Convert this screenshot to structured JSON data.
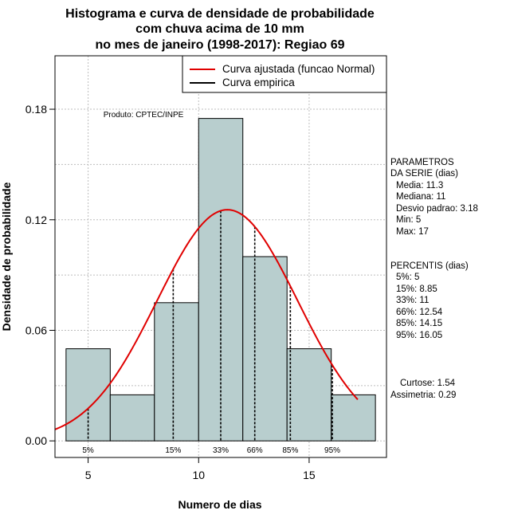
{
  "chart_data": {
    "type": "bar",
    "title_lines": [
      "Histograma e curva de densidade de probabilidade",
      "com chuva acima de 10 mm",
      "no mes de janeiro (1998-2017): Regiao 69"
    ],
    "xlabel": "Numero de dias",
    "ylabel": "Densidade de probabilidade",
    "xlim": [
      3.5,
      18.5
    ],
    "ylim": [
      -0.009,
      0.209
    ],
    "x_ticks": [
      5,
      10,
      15
    ],
    "y_ticks": [
      0.0,
      0.06,
      0.12,
      0.18
    ],
    "y_tick_labels": [
      "0.00",
      "0.06",
      "0.12",
      "0.18"
    ],
    "grid": true,
    "bins": [
      {
        "from": 4,
        "to": 6,
        "density": 0.05
      },
      {
        "from": 6,
        "to": 8,
        "density": 0.025
      },
      {
        "from": 8,
        "to": 10,
        "density": 0.075
      },
      {
        "from": 10,
        "to": 12,
        "density": 0.175
      },
      {
        "from": 12,
        "to": 14,
        "density": 0.1
      },
      {
        "from": 14,
        "to": 16,
        "density": 0.05
      },
      {
        "from": 16,
        "to": 18,
        "density": 0.025
      }
    ],
    "fitted_curve": {
      "label": "Curva ajustada (funcao Normal)",
      "color": "#e00000",
      "mean": 11.3,
      "sd": 3.18,
      "from": 3.5,
      "to": 17.2
    },
    "empirical_curve": {
      "label": "Curva empirica",
      "color": "#000000"
    },
    "percentile_markers": [
      {
        "label": "5%",
        "x": 5
      },
      {
        "label": "15%",
        "x": 8.85
      },
      {
        "label": "33%",
        "x": 11
      },
      {
        "label": "66%",
        "x": 12.54
      },
      {
        "label": "85%",
        "x": 14.15
      },
      {
        "label": "95%",
        "x": 16.05
      }
    ],
    "bar_color": "#b8cece",
    "producer": "Produto: CPTEC/INPE",
    "legend_position": "top-right"
  },
  "side_panel": {
    "params_title": [
      "PARAMETROS",
      "DA SERIE (dias)"
    ],
    "params": [
      "Media: 11.3",
      "Mediana: 11",
      "Desvio padrao: 3.18",
      "Min: 5",
      "Max: 17"
    ],
    "percentis_title": "PERCENTIS (dias)",
    "percentis": [
      "5%: 5",
      "15%: 8.85",
      "33%: 11",
      "66%: 12.54",
      "85%: 14.15",
      "95%: 16.05"
    ],
    "curtose": "Curtose: 1.54",
    "assimetria": "Assimetria: 0.29"
  }
}
